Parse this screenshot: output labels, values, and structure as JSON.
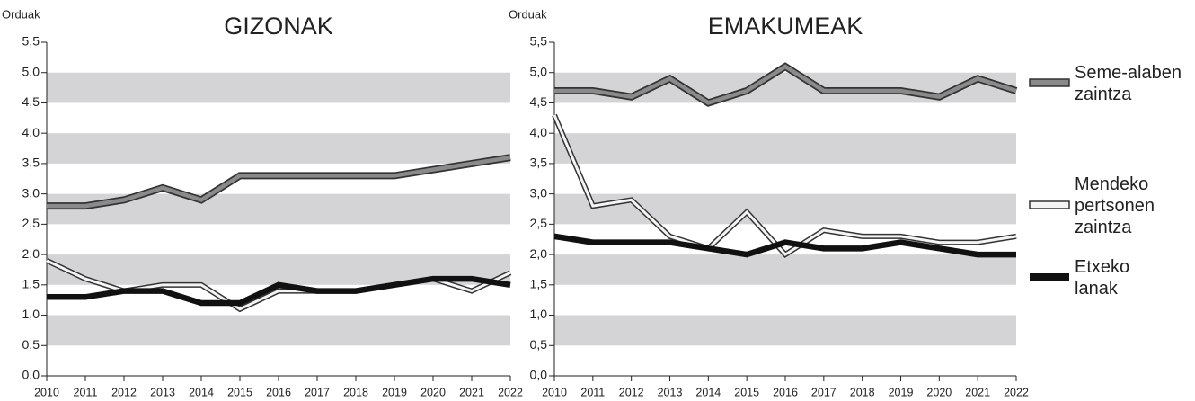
{
  "chart_data": [
    {
      "type": "line",
      "title": "GIZONAK",
      "y_label": "Orduak",
      "categories": [
        "2010",
        "2011",
        "2012",
        "2013",
        "2014",
        "2015",
        "2016",
        "2017",
        "2018",
        "2019",
        "2020",
        "2021",
        "2022"
      ],
      "series": [
        {
          "color": "#8a8a8a",
          "values": [
            2.8,
            2.8,
            2.9,
            3.1,
            2.9,
            3.3,
            3.3,
            3.3,
            3.3,
            3.3,
            3.4,
            3.5,
            3.6
          ]
        },
        {
          "color": "#f4f4f4",
          "values": [
            1.9,
            1.6,
            1.4,
            1.5,
            1.5,
            1.1,
            1.4,
            1.4,
            1.4,
            1.5,
            1.6,
            1.4,
            1.7
          ]
        },
        {
          "color": "#111111",
          "values": [
            1.3,
            1.3,
            1.4,
            1.4,
            1.2,
            1.2,
            1.5,
            1.4,
            1.4,
            1.5,
            1.6,
            1.6,
            1.5
          ]
        }
      ],
      "ylim": [
        0,
        5.5
      ],
      "yticks": [
        {
          "value": 0,
          "label": "0,0"
        },
        {
          "value": 0.5,
          "label": "0,5"
        },
        {
          "value": 1,
          "label": "1,0"
        },
        {
          "value": 1.5,
          "label": "1,5"
        },
        {
          "value": 2,
          "label": "2,0"
        },
        {
          "value": 2.5,
          "label": "2,5"
        },
        {
          "value": 3,
          "label": "3,0"
        },
        {
          "value": 3.5,
          "label": "3,5"
        },
        {
          "value": 4,
          "label": "4,0"
        },
        {
          "value": 4.5,
          "label": "4,5"
        },
        {
          "value": 5,
          "label": "5,0"
        },
        {
          "value": 5.5,
          "label": "5,5"
        }
      ]
    },
    {
      "type": "line",
      "title": "EMAKUMEAK",
      "y_label": "Orduak",
      "categories": [
        "2010",
        "2011",
        "2012",
        "2013",
        "2014",
        "2015",
        "2016",
        "2017",
        "2018",
        "2019",
        "2020",
        "2021",
        "2022"
      ],
      "series": [
        {
          "name": "Seme-alaben zaintza",
          "color": "#8a8a8a",
          "values": [
            4.7,
            4.7,
            4.6,
            4.9,
            4.5,
            4.7,
            5.1,
            4.7,
            4.7,
            4.7,
            4.6,
            4.9,
            4.7
          ]
        },
        {
          "name": "Mendeko pertsonen zaintza",
          "color": "#f4f4f4",
          "values": [
            4.3,
            2.8,
            2.9,
            2.3,
            2.1,
            2.7,
            2.0,
            2.4,
            2.3,
            2.3,
            2.2,
            2.2,
            2.3
          ]
        },
        {
          "name": "Etxeko lanak",
          "color": "#111111",
          "values": [
            2.3,
            2.2,
            2.2,
            2.2,
            2.1,
            2.0,
            2.2,
            2.1,
            2.1,
            2.2,
            2.1,
            2.0,
            2.0
          ]
        }
      ],
      "ylim": [
        0,
        5.5
      ],
      "yticks": [
        {
          "value": 0,
          "label": "0,0"
        },
        {
          "value": 0.5,
          "label": "0,5"
        },
        {
          "value": 1,
          "label": "1,0"
        },
        {
          "value": 1.5,
          "label": "1,5"
        },
        {
          "value": 2,
          "label": "2,0"
        },
        {
          "value": 2.5,
          "label": "2,5"
        },
        {
          "value": 3,
          "label": "3,0"
        },
        {
          "value": 3.5,
          "label": "3,5"
        },
        {
          "value": 4,
          "label": "4,0"
        },
        {
          "value": 4.5,
          "label": "4,5"
        },
        {
          "value": 5,
          "label": "5,0"
        },
        {
          "value": 5.5,
          "label": "5,5"
        }
      ]
    }
  ]
}
